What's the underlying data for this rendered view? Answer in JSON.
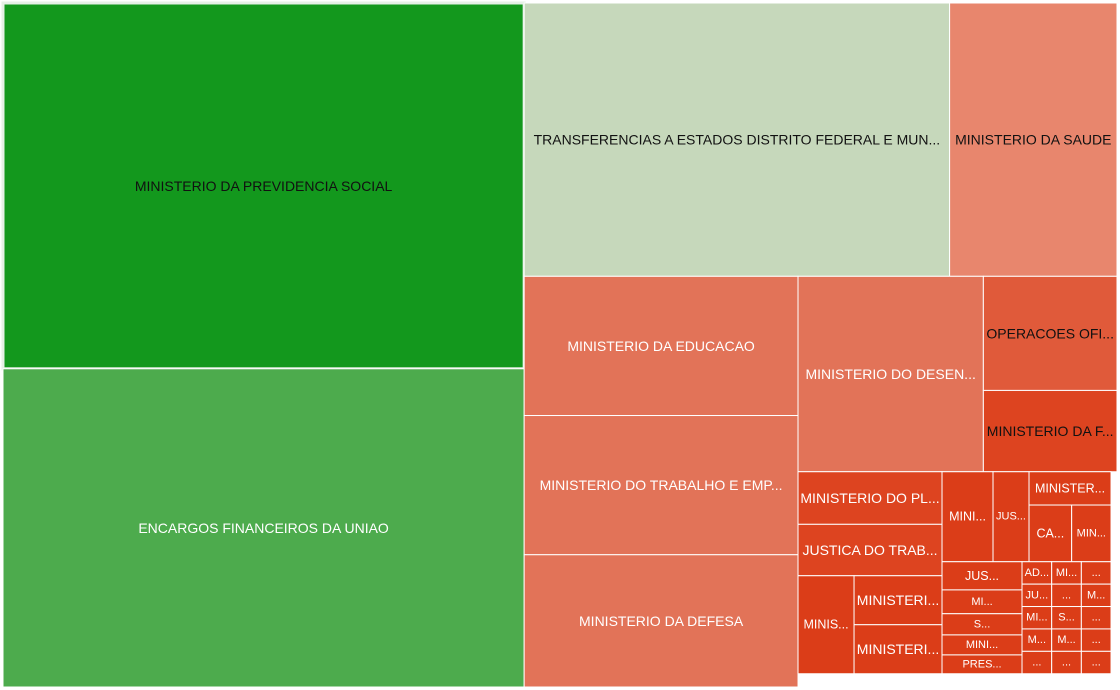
{
  "chart_data": {
    "type": "treemap",
    "title": "",
    "colors": {
      "border": "#ffffff",
      "dark_green": "#13981d",
      "mid_green": "#4dab4d",
      "pale_green": "#c6d8bb",
      "salmon": "#e8866d",
      "orange_red": "#e27358",
      "red_orange": "#e05a3a",
      "red": "#dd4420",
      "dark_red": "#db3d18"
    },
    "groups": [
      {
        "key": "left",
        "children": [
          {
            "label": "MINISTERIO DA PREVIDENCIA SOCIAL",
            "value": 100,
            "color": "#13981d",
            "text_color": "#111111",
            "highlight": true
          },
          {
            "label": "ENCARGOS FINANCEIROS DA UNIAO",
            "value": 87,
            "color": "#4dab4d",
            "text_color": "#ffffff"
          }
        ]
      },
      {
        "key": "right",
        "children": [
          {
            "key": "top-row",
            "children": [
              {
                "label": "TRANSFERENCIAS A ESTADOS DISTRITO FEDERAL E MUN...",
                "value": 61,
                "color": "#c6d8bb",
                "text_color": "#111111"
              },
              {
                "label": "MINISTERIO DA SAUDE",
                "value": 24,
                "color": "#e8866d",
                "text_color": "#111111"
              }
            ]
          },
          {
            "key": "bottom-area",
            "children": [
              {
                "key": "column-a",
                "children": [
                  {
                    "label": "MINISTERIO DA EDUCACAO",
                    "value": 20,
                    "color": "#e27358",
                    "text_color": "#ffffff"
                  },
                  {
                    "label": "MINISTERIO DO TRABALHO E EMP...",
                    "value": 20,
                    "color": "#e27358",
                    "text_color": "#ffffff"
                  },
                  {
                    "label": "MINISTERIO DA DEFESA",
                    "value": 19,
                    "color": "#e27358",
                    "text_color": "#ffffff"
                  }
                ]
              },
              {
                "key": "column-b",
                "children": [
                  {
                    "key": "upper",
                    "children": [
                      {
                        "label": "MINISTERIO DO DESEN...",
                        "value": 19,
                        "color": "#e27358",
                        "text_color": "#ffffff"
                      },
                      {
                        "key": "pair",
                        "children": [
                          {
                            "label": "OPERACOES OFICI...",
                            "value": 8,
                            "color": "#e05a3a",
                            "text_color": "#111111"
                          },
                          {
                            "label": "MINISTERIO DA FA...",
                            "value": 5.7,
                            "color": "#dd4420",
                            "text_color": "#111111"
                          }
                        ]
                      }
                    ]
                  },
                  {
                    "key": "lower",
                    "children": [
                      {
                        "key": "pl-jt",
                        "children": [
                          {
                            "label": "MINISTERIO DO PL...",
                            "value": 4.5,
                            "color": "#dd4420",
                            "text_color": "#ffffff"
                          },
                          {
                            "label": "JUSTICA DO TRAB...",
                            "value": 4.4,
                            "color": "#dd4420",
                            "text_color": "#ffffff"
                          }
                        ]
                      },
                      {
                        "key": "mini-jus",
                        "children": [
                          {
                            "label": "MINI...",
                            "value": 3.4,
                            "color": "#db3d18",
                            "text_color": "#ffffff"
                          },
                          {
                            "label": "JUS...",
                            "value": 2.4,
                            "color": "#db3d18",
                            "text_color": "#ffffff"
                          }
                        ]
                      },
                      {
                        "key": "minister-ca-min",
                        "children": [
                          {
                            "label": "MINISTER...",
                            "value": 1.9,
                            "color": "#db3d18",
                            "text_color": "#ffffff"
                          },
                          {
                            "label": "CA...",
                            "value": 2.0,
                            "color": "#db3d18",
                            "text_color": "#ffffff"
                          },
                          {
                            "label": "MIN...",
                            "value": 1.7,
                            "color": "#db3d18",
                            "text_color": "#ffffff"
                          }
                        ]
                      },
                      {
                        "key": "ministeri-stack",
                        "children": [
                          {
                            "label": "MINISTERI...",
                            "value": 2.1,
                            "color": "#db3d18",
                            "text_color": "#ffffff"
                          },
                          {
                            "label": "MINISTERI...",
                            "value": 2.1,
                            "color": "#db3d18",
                            "text_color": "#ffffff"
                          }
                        ]
                      },
                      {
                        "label": "MINIS...",
                        "value": 2.4,
                        "color": "#db3d18",
                        "text_color": "#ffffff"
                      },
                      {
                        "key": "tiny-cluster",
                        "children": [
                          {
                            "key": "jus-mi",
                            "children": [
                              {
                                "label": "JUS...",
                                "value": 1.3,
                                "color": "#db3d18",
                                "text_color": "#ffffff"
                              },
                              {
                                "label": "MI...",
                                "value": 1.1,
                                "color": "#db3d18",
                                "text_color": "#ffffff"
                              }
                            ]
                          },
                          {
                            "key": "s-mini-pres",
                            "children": [
                              {
                                "label": "S...",
                                "value": 0.9,
                                "color": "#db3d18",
                                "text_color": "#ffffff"
                              },
                              {
                                "label": "MINI...",
                                "value": 0.85,
                                "color": "#db3d18",
                                "text_color": "#ffffff"
                              },
                              {
                                "label": "PRES...",
                                "value": 0.8,
                                "color": "#db3d18",
                                "text_color": "#ffffff"
                              }
                            ]
                          },
                          {
                            "key": "tiny-right",
                            "children": [
                              {
                                "label": "ADV...",
                                "value": 0.55,
                                "color": "#db3d18",
                                "text_color": "#ffffff"
                              },
                              {
                                "label": "JUS...",
                                "value": 0.5,
                                "color": "#db3d18",
                                "text_color": "#ffffff"
                              },
                              {
                                "label": "MINI...",
                                "value": 0.45,
                                "color": "#db3d18",
                                "text_color": "#ffffff"
                              },
                              {
                                "label": "M...",
                                "value": 0.3,
                                "color": "#db3d18",
                                "text_color": "#ffffff"
                              },
                              {
                                "label": "...",
                                "value": 0.28,
                                "color": "#db3d18",
                                "text_color": "#ffffff"
                              },
                              {
                                "label": "MINI...",
                                "value": 0.35,
                                "color": "#db3d18",
                                "text_color": "#ffffff"
                              },
                              {
                                "label": "...",
                                "value": 0.25,
                                "color": "#db3d18",
                                "text_color": "#ffffff"
                              },
                              {
                                "label": "S...",
                                "value": 0.22,
                                "color": "#db3d18",
                                "text_color": "#ffffff"
                              },
                              {
                                "label": "M...",
                                "value": 0.25,
                                "color": "#db3d18",
                                "text_color": "#ffffff"
                              },
                              {
                                "label": "...",
                                "value": 0.2,
                                "color": "#db3d18",
                                "text_color": "#ffffff"
                              },
                              {
                                "label": "...",
                                "value": 0.2,
                                "color": "#db3d18",
                                "text_color": "#ffffff"
                              },
                              {
                                "label": "M...",
                                "value": 0.18,
                                "color": "#db3d18",
                                "text_color": "#ffffff"
                              },
                              {
                                "label": "...",
                                "value": 0.17,
                                "color": "#db3d18",
                                "text_color": "#ffffff"
                              },
                              {
                                "label": "...",
                                "value": 0.15,
                                "color": "#db3d18",
                                "text_color": "#ffffff"
                              },
                              {
                                "label": "...",
                                "value": 0.12,
                                "color": "#db3d18",
                                "text_color": "#ffffff"
                              }
                            ]
                          }
                        ]
                      }
                    ]
                  }
                ]
              }
            ]
          }
        ]
      }
    ]
  }
}
